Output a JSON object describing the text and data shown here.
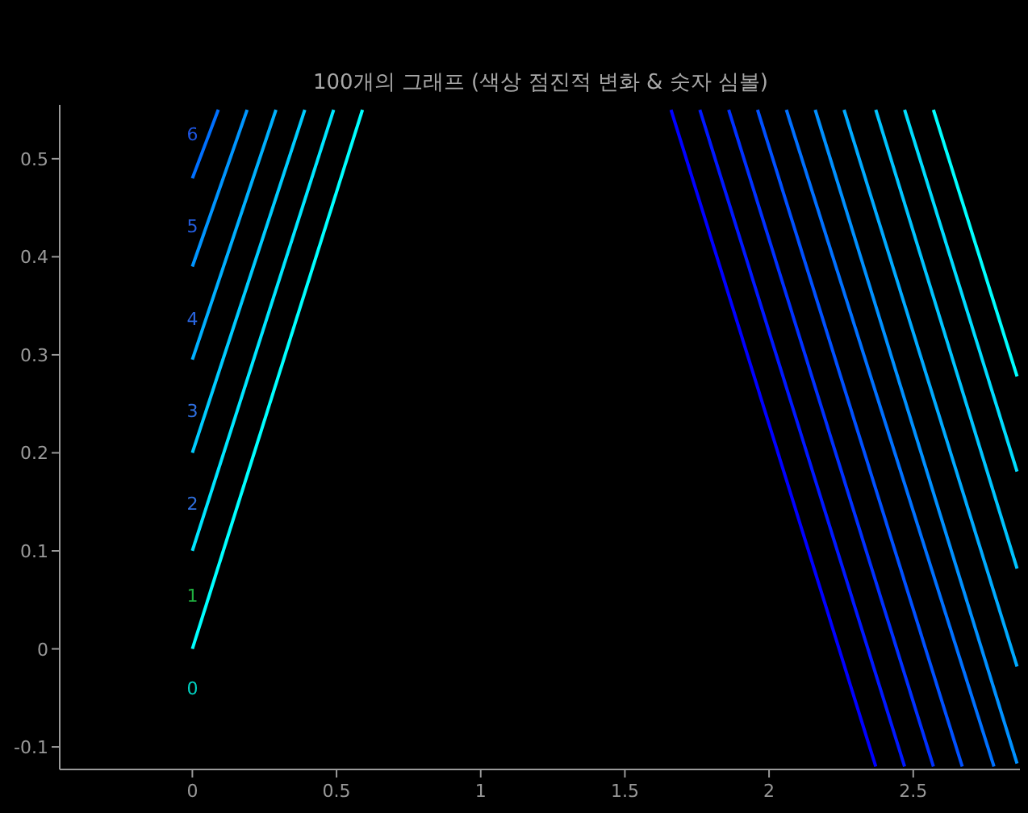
{
  "chart_data": {
    "type": "line",
    "title": "100개의 그래프 (색상 점진적 변화 & 숫자 심볼)",
    "xlim": [
      -0.46,
      2.87
    ],
    "ylim": [
      -0.123,
      0.555
    ],
    "xticks": [
      0,
      0.5,
      1,
      1.5,
      2,
      2.5
    ],
    "yticks": [
      -0.1,
      0,
      0.1,
      0.2,
      0.3,
      0.4,
      0.5
    ],
    "grid": false,
    "marker": "none",
    "line_style": "solid",
    "series": [
      {
        "color": "#00ffff",
        "x": [
          0,
          0.59
        ],
        "values": [
          0,
          0.55
        ]
      },
      {
        "color": "#00e6ff",
        "x": [
          0,
          0.49
        ],
        "values": [
          0.1,
          0.55
        ]
      },
      {
        "color": "#00ccff",
        "x": [
          0,
          0.39
        ],
        "values": [
          0.2,
          0.55
        ]
      },
      {
        "color": "#00b0ff",
        "x": [
          0,
          0.29
        ],
        "values": [
          0.295,
          0.55
        ]
      },
      {
        "color": "#0095ff",
        "x": [
          0,
          0.19
        ],
        "values": [
          0.39,
          0.55
        ]
      },
      {
        "color": "#0070ff",
        "x": [
          0,
          0.09
        ],
        "values": [
          0.48,
          0.55
        ]
      },
      {
        "color": "#0000ff",
        "x": [
          1.66,
          2.37
        ],
        "values": [
          0.55,
          -0.12
        ]
      },
      {
        "color": "#0018ff",
        "x": [
          1.76,
          2.47
        ],
        "values": [
          0.55,
          -0.12
        ]
      },
      {
        "color": "#0030ff",
        "x": [
          1.86,
          2.57
        ],
        "values": [
          0.55,
          -0.12
        ]
      },
      {
        "color": "#0050ff",
        "x": [
          1.96,
          2.67
        ],
        "values": [
          0.55,
          -0.12
        ]
      },
      {
        "color": "#0070ff",
        "x": [
          2.06,
          2.78
        ],
        "values": [
          0.55,
          -0.12
        ]
      },
      {
        "color": "#0090ff",
        "x": [
          2.16,
          2.86
        ],
        "values": [
          0.55,
          -0.117
        ]
      },
      {
        "color": "#00aaff",
        "x": [
          2.26,
          2.86
        ],
        "values": [
          0.55,
          -0.018
        ]
      },
      {
        "color": "#00c4ff",
        "x": [
          2.37,
          2.86
        ],
        "values": [
          0.55,
          0.082
        ]
      },
      {
        "color": "#00ddff",
        "x": [
          2.47,
          2.86
        ],
        "values": [
          0.55,
          0.181
        ]
      },
      {
        "color": "#00ffff",
        "x": [
          2.57,
          2.86
        ],
        "values": [
          0.55,
          0.278
        ]
      }
    ],
    "annotations": [
      "0",
      "1",
      "2",
      "3",
      "4",
      "5",
      "6"
    ]
  }
}
